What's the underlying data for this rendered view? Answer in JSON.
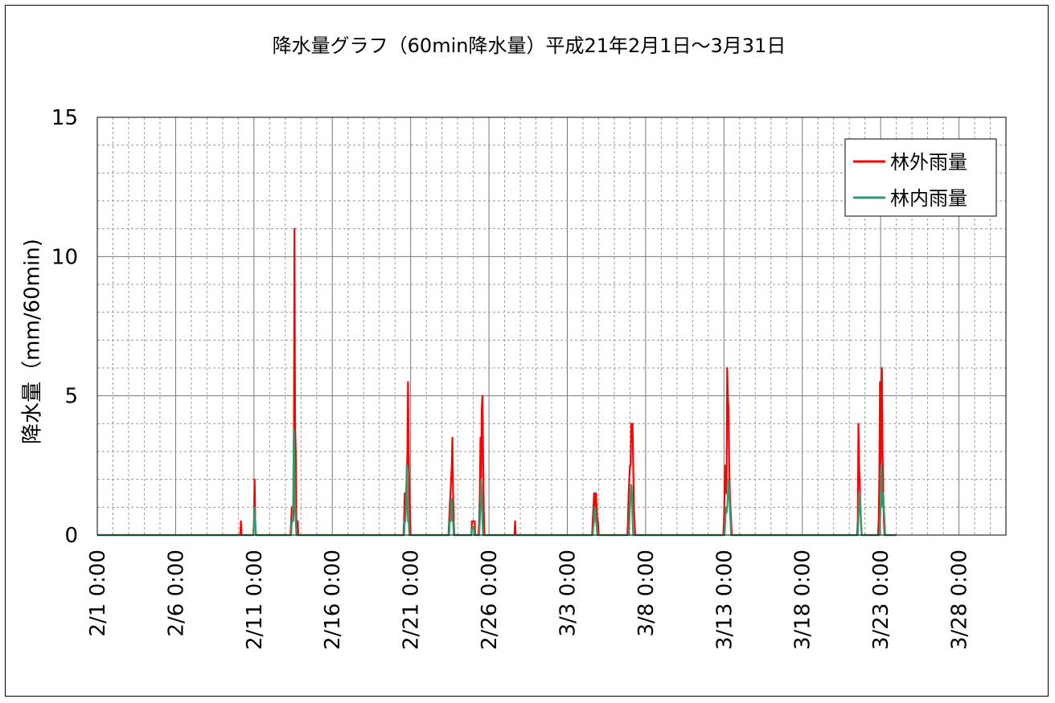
{
  "chart_data": {
    "type": "line",
    "title": "降水量グラフ（60min降水量）平成21年2月1日～3月31日",
    "xlabel": "",
    "ylabel": "降水量（mm/60min)",
    "ylim": [
      0,
      15
    ],
    "y_ticks": [
      "0",
      "5",
      "10",
      "15"
    ],
    "x_range_days": [
      0,
      58
    ],
    "x_tick_labels": [
      "2/1 0:00",
      "2/6 0:00",
      "2/11 0:00",
      "2/16 0:00",
      "2/21 0:00",
      "2/26 0:00",
      "3/3 0:00",
      "3/8 0:00",
      "3/13 0:00",
      "3/18 0:00",
      "3/23 0:00",
      "3/28 0:00"
    ],
    "grid": true,
    "legend_position": "top-right",
    "series": [
      {
        "name": "林外雨量",
        "color": "#ff0000",
        "events": [
          {
            "start": "2/10 4:00",
            "values": [
              0.5,
              0
            ]
          },
          {
            "start": "2/11 0:00",
            "values": [
              0.5,
              2,
              0.5,
              0
            ]
          },
          {
            "start": "2/13 9:00",
            "values": [
              0.5,
              1,
              0.5,
              0.5,
              1,
              11,
              4,
              3,
              0.5,
              0,
              0.5
            ]
          },
          {
            "start": "2/20 14:00",
            "values": [
              0.5,
              1.5,
              1,
              1.5,
              2,
              3,
              5.5,
              3,
              1.5,
              0.5
            ]
          },
          {
            "start": "2/23 11:00",
            "values": [
              0.5,
              1,
              1.5,
              2,
              2.5,
              3.5,
              1.5,
              0.5
            ]
          },
          {
            "start": "2/24 22:00",
            "values": [
              0.5,
              0.5,
              0.5,
              0.5,
              0.5,
              0
            ]
          },
          {
            "start": "2/25 9:00",
            "values": [
              0.5,
              1.5,
              3.5,
              2,
              4.5,
              5,
              3,
              1
            ]
          },
          {
            "start": "2/27 16:00",
            "values": [
              0.5,
              0
            ]
          },
          {
            "start": "3/4 15:00",
            "values": [
              0.5,
              1,
              1.5,
              1.5,
              1,
              1.5,
              1,
              0.5,
              0.5
            ]
          },
          {
            "start": "3/6 21:00",
            "values": [
              0.5,
              1.5,
              2,
              2.5,
              2.5,
              4,
              3.5,
              4,
              2.5,
              1,
              0.5
            ]
          },
          {
            "start": "3/13 0:00",
            "values": [
              0.5,
              1.5,
              2.5,
              1.5,
              2,
              6,
              5,
              4.5,
              2.5,
              1.5,
              1,
              0.5
            ]
          },
          {
            "start": "3/21 13:00",
            "values": [
              0.5,
              4,
              2.5,
              2,
              1,
              0.5
            ]
          },
          {
            "start": "3/22 21:00",
            "values": [
              0.5,
              2,
              5.5,
              2.5,
              3.5,
              6,
              3,
              1.5,
              0.5
            ]
          }
        ]
      },
      {
        "name": "林内雨量",
        "color": "#2e9b6e",
        "events": [
          {
            "start": "2/11 0:00",
            "values": [
              0.5,
              1,
              0.5,
              0
            ]
          },
          {
            "start": "2/13 10:00",
            "values": [
              0.5,
              0.5,
              1,
              3.8,
              2.5,
              1,
              0.5
            ]
          },
          {
            "start": "2/20 15:00",
            "values": [
              0.5,
              0.5,
              1,
              2.5,
              1.5,
              0.5,
              0.5
            ]
          },
          {
            "start": "2/23 12:00",
            "values": [
              0.5,
              0.5,
              1,
              1.3,
              0.5,
              0.5
            ]
          },
          {
            "start": "2/24 22:00",
            "values": [
              0.2,
              0.3,
              0.3,
              0.2,
              0
            ]
          },
          {
            "start": "2/25 10:00",
            "values": [
              0.5,
              1,
              2,
              1.5,
              0.5
            ]
          },
          {
            "start": "3/4 16:00",
            "values": [
              0.3,
              0.5,
              1,
              0.8,
              0.5,
              0.3
            ]
          },
          {
            "start": "3/6 23:00",
            "values": [
              0.5,
              1,
              1.5,
              1.8,
              1.5,
              0.5
            ]
          },
          {
            "start": "3/13 2:00",
            "values": [
              0.5,
              1,
              0.8,
              1,
              1.5,
              2,
              1.5,
              1,
              0.5
            ]
          },
          {
            "start": "3/21 14:00",
            "values": [
              0.5,
              1.5,
              1.5,
              1,
              0.5
            ]
          },
          {
            "start": "3/22 23:00",
            "values": [
              0.5,
              1,
              2.5,
              1.5,
              1,
              1.5,
              1,
              0.5
            ]
          }
        ]
      }
    ]
  }
}
